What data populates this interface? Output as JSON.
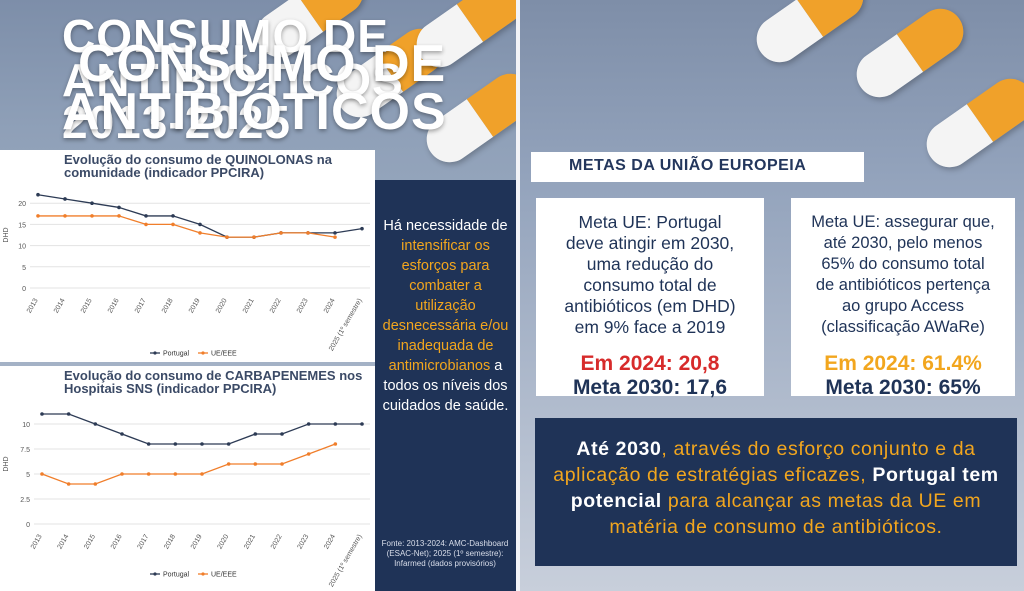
{
  "colors": {
    "navy": "#1f3357",
    "portugal": "#2d3b55",
    "ue": "#f07e2b",
    "red": "#d72b2b",
    "orange": "#f2a61e"
  },
  "left": {
    "title_lines": [
      "CONSUMO DE",
      "ANTIBIÓTICOS",
      "2013-2025"
    ],
    "message": {
      "p1": "Há necessidade de",
      "h1": "intensificar os esforços para combater a utilização desnecessária e/ou inadequada de antimicrobianos",
      "p2": "a todos os níveis dos cuidados de saúde."
    },
    "source": "Fonte: 2013-2024: AMC-Dashboard (ESAC-Net); 2025 (1º semestre): Infarmed (dados provisórios)"
  },
  "chart_data": [
    {
      "type": "line",
      "title_lines": [
        "Evolução do consumo de QUINOLONAS na",
        "comunidade (indicador PPCIRA)"
      ],
      "ylabel": "DHD",
      "ylim": [
        0,
        25
      ],
      "yticks": [
        0,
        5,
        10,
        15,
        20
      ],
      "categories": [
        "2013",
        "2014",
        "2015",
        "2016",
        "2017",
        "2018",
        "2019",
        "2020",
        "2021",
        "2022",
        "2023",
        "2024",
        "2025 (1º semestre)"
      ],
      "series": [
        {
          "name": "Portugal",
          "values": [
            22,
            21,
            20,
            19,
            17,
            17,
            15,
            12,
            12,
            13,
            13,
            13,
            14
          ]
        },
        {
          "name": "UE/EEE",
          "values": [
            17,
            17,
            17,
            17,
            15,
            15,
            13,
            12,
            12,
            13,
            13,
            12,
            null
          ]
        }
      ]
    },
    {
      "type": "line",
      "title_lines": [
        "Evolução do consumo de CARBAPENEMES nos",
        "Hospitais SNS (indicador PPCIRA)"
      ],
      "ylabel": "DHD",
      "ylim": [
        0,
        12
      ],
      "yticks": [
        0,
        2.5,
        5,
        7.5,
        10
      ],
      "categories": [
        "2013",
        "2014",
        "2015",
        "2016",
        "2017",
        "2018",
        "2019",
        "2020",
        "2021",
        "2022",
        "2023",
        "2024",
        "2025 (1º semestre)"
      ],
      "series": [
        {
          "name": "Portugal",
          "values": [
            11,
            11,
            10,
            9,
            8,
            8,
            8,
            8,
            9,
            9,
            10,
            10,
            10
          ]
        },
        {
          "name": "UE/EEE",
          "values": [
            5,
            4,
            4,
            5,
            5,
            5,
            5,
            6,
            6,
            6,
            7,
            8,
            null
          ]
        }
      ]
    }
  ],
  "right": {
    "title_lines": [
      "CONSUMO DE",
      "ANTIBIÓTICOS"
    ],
    "metas_label": "METAS DA UNIÃO EUROPEIA",
    "card1": {
      "body_lines": [
        "Meta UE: Portugal",
        "deve atingir em 2030,",
        "uma redução do",
        "consumo total de",
        "antibióticos (em DHD)",
        "em 9% face a 2019"
      ],
      "current": "Em 2024: 20,8",
      "target": "Meta 2030: 17,6"
    },
    "card2": {
      "body_lines": [
        "Meta UE: assegurar que,",
        "até 2030, pelo menos",
        "65% do consumo total",
        "de antibióticos pertença",
        "ao grupo Access",
        "(classificação AWaRe)"
      ],
      "current": "Em 2024: 61.4%",
      "target": "Meta 2030: 65%"
    },
    "bottom": {
      "b1": "Até 2030",
      "t1": ", através do esforço conjunto e da aplicação de estratégias eficazes,",
      "b2": "Portugal tem potencial",
      "t2": "para alcançar as metas da UE em matéria de consumo de antibióticos."
    }
  }
}
